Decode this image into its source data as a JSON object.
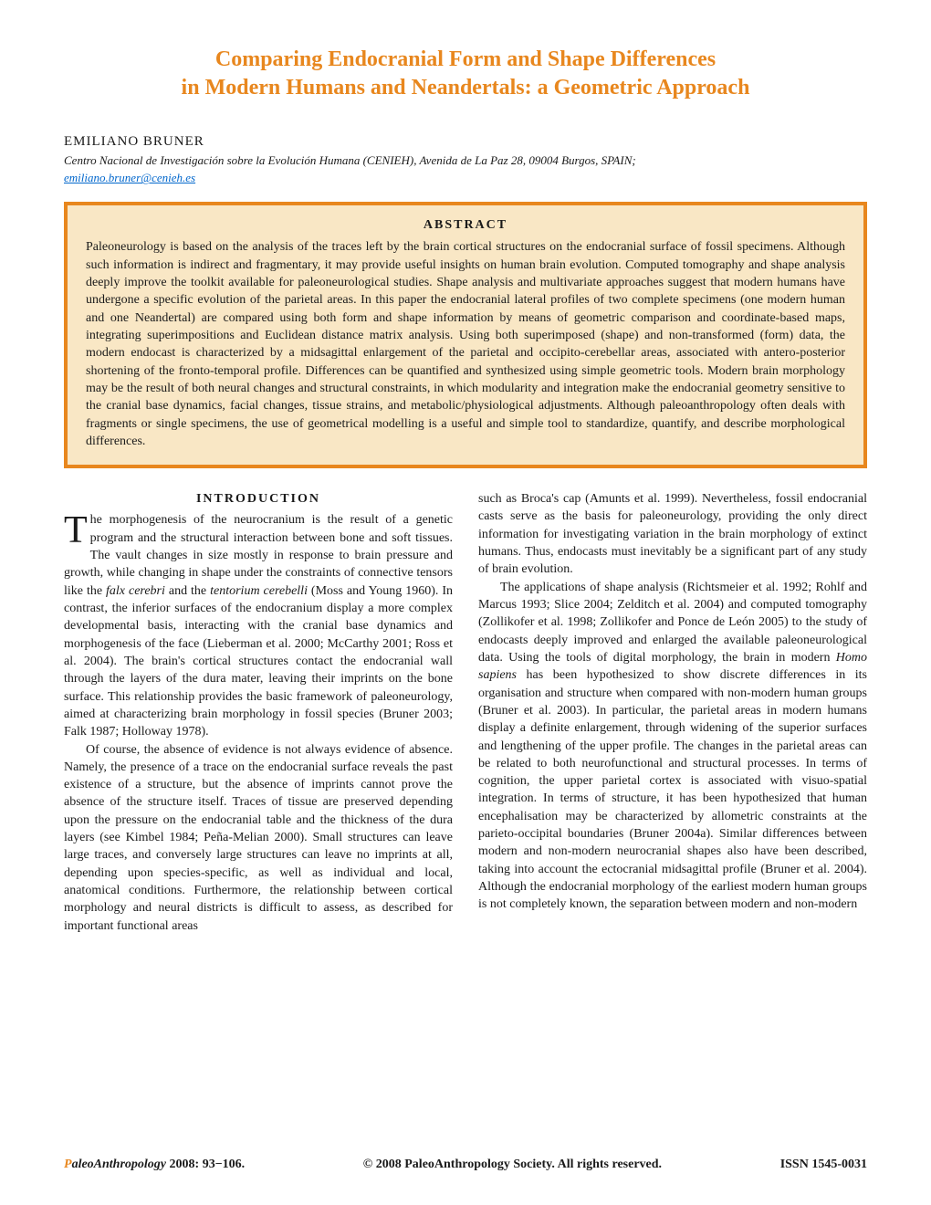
{
  "title_line1": "Comparing Endocranial Form and Shape Differences",
  "title_line2": "in Modern Humans and Neandertals: a Geometric Approach",
  "author": "EMILIANO BRUNER",
  "affiliation": "Centro Nacional de Investigación sobre la Evolución Humana (CENIEH), Avenida de La Paz 28, 09004 Burgos, SPAIN;",
  "email": "emiliano.bruner@cenieh.es",
  "abstract_heading": "ABSTRACT",
  "abstract_text": "Paleoneurology is based on the analysis of the traces left by the brain cortical structures on the endocranial surface of fossil specimens. Although such information is indirect and fragmentary, it may provide useful insights on human brain evolution. Computed tomography and shape analysis deeply improve the toolkit available for paleoneurological studies. Shape analysis and multivariate approaches suggest that modern humans have undergone a specific evolution of the parietal areas. In this paper the endocranial lateral profiles of two complete specimens (one modern human and one Neandertal) are compared using both form and shape information by means of geometric comparison and coordinate-based maps, integrating superimpositions and Euclidean distance matrix analysis. Using both superimposed (shape) and non-transformed (form) data, the modern endocast is characterized by a midsagittal enlargement of the parietal and occipito-cerebellar areas, associated with antero-posterior shortening of the fronto-temporal profile. Differences can be quantified and synthesized using simple geometric tools. Modern brain morphology may be the result of both neural changes and structural constraints, in which modularity and integration make the endocranial geometry sensitive to the cranial base dynamics, facial changes, tissue strains, and metabolic/physiological adjustments. Although paleoanthropology often deals with fragments or single specimens, the use of geometrical modelling is a useful and simple tool to standardize, quantify, and describe morphological differences.",
  "intro_heading": "INTRODUCTION",
  "col1_p1_first": "T",
  "col1_p1_rest_a": "he morphogenesis of the neurocranium is the result of a genetic program and the structural interaction between bone and soft tissues. The vault changes in size mostly in response to brain pressure and growth, while changing in shape under the constraints of connective tensors like the ",
  "col1_p1_em1": "falx cerebri",
  "col1_p1_mid": " and the ",
  "col1_p1_em2": "tentorium cerebelli",
  "col1_p1_rest_b": " (Moss and Young 1960). In contrast, the inferior surfaces of the endocranium display a more complex developmental basis, interacting with the cranial base dynamics and morphogenesis of the face (Lieberman et al. 2000; McCarthy 2001; Ross et al. 2004). The brain's cortical structures contact the endocranial wall through the layers of the dura mater, leaving their imprints on the bone surface. This relationship provides the basic framework of paleoneurology, aimed at characterizing brain morphology in fossil species (Bruner 2003; Falk 1987; Holloway 1978).",
  "col1_p2": "Of course, the absence of evidence is not always evidence of absence. Namely, the presence of a trace on the endocranial surface reveals the past existence of a structure, but the absence of imprints cannot prove the absence of the structure itself. Traces of tissue are preserved depending upon the pressure on the endocranial table and the thickness of the dura layers (see Kimbel 1984; Peña-Melian 2000). Small structures can leave large traces, and conversely large structures can leave no imprints at all, depending upon species-specific, as well as individual and local, anatomical conditions. Furthermore, the relationship between cortical morphology and neural districts is difficult to assess, as described for important functional areas",
  "col2_p1": "such as Broca's cap (Amunts et al. 1999). Nevertheless, fossil endocranial casts serve as the basis for paleoneurology, providing the only direct information for investigating variation in the brain morphology of extinct humans. Thus, endocasts must inevitably be a significant part of any study of brain evolution.",
  "col2_p2_a": "The applications of shape analysis (Richtsmeier et al. 1992; Rohlf and Marcus 1993; Slice 2004; Zelditch et al. 2004) and computed tomography (Zollikofer et al. 1998; Zollikofer and Ponce de León 2005) to the study of endocasts deeply improved and enlarged the available paleoneurological data. Using the tools of digital morphology, the brain in modern ",
  "col2_p2_em": "Homo sapiens",
  "col2_p2_b": " has been hypothesized to show discrete differences in its organisation and structure when compared with non-modern human groups (Bruner et al. 2003). In particular, the parietal areas in modern humans display a definite enlargement, through widening of the superior surfaces and lengthening of the upper profile. The changes in the parietal areas can be related to both neurofunctional and structural processes. In terms of cognition, the upper parietal cortex is associated with visuo-spatial integration. In terms of structure, it has been hypothesized that human encephalisation may be characterized by allometric constraints at the parieto-occipital boundaries (Bruner 2004a). Similar differences between modern and non-modern neurocranial shapes also have been described, taking into account the ectocranial midsagittal profile (Bruner et al. 2004). Although the endocranial morphology of the earliest modern human groups is not completely known, the separation between modern and non-modern",
  "footer": {
    "journal_p": "P",
    "journal_rest": "aleoAnthropology",
    "year_pages": " 2008: 93−106.",
    "copyright": "© 2008  PaleoAnthropology Society. All rights reserved.",
    "issn": "ISSN 1545-0031"
  },
  "colors": {
    "accent": "#e8871e",
    "abstract_bg": "#f9e7c5",
    "link": "#0066cc"
  }
}
